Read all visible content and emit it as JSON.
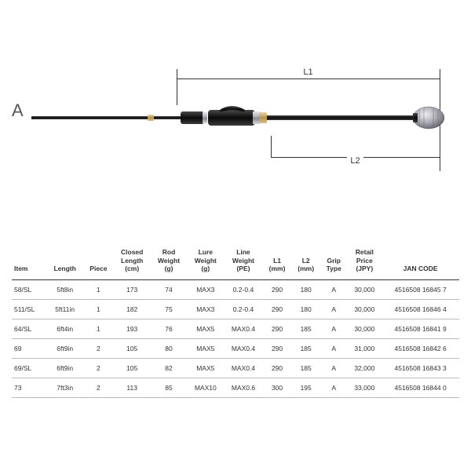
{
  "diagram": {
    "label": "A",
    "dim1": "L1",
    "dim2": "L2",
    "colors": {
      "shaft": "#2a2a2a",
      "metal_light": "#c8c8cc",
      "metal_dark": "#6a6a70",
      "gold": "#c8a862",
      "black": "#1a1a1a"
    }
  },
  "table": {
    "headers": [
      "Item",
      "Length",
      "Piece",
      "Closed\nLength\n(cm)",
      "Rod\nWeight\n(g)",
      "Lure\nWeight\n(g)",
      "Line\nWeight\n(PE)",
      "L1\n(mm)",
      "L2\n(mm)",
      "Grip\nType",
      "Retail\nPrice\n(JPY)",
      "JAN CODE"
    ],
    "rows": [
      [
        "58/SL",
        "5ft8in",
        "1",
        "173",
        "74",
        "MAX3",
        "0.2-0.4",
        "290",
        "180",
        "A",
        "30,000",
        "4516508 16845 7"
      ],
      [
        "511/SL",
        "5ft11in",
        "1",
        "182",
        "75",
        "MAX3",
        "0.2-0.4",
        "290",
        "180",
        "A",
        "30,000",
        "4516508 16846 4"
      ],
      [
        "64/SL",
        "6ft4in",
        "1",
        "193",
        "76",
        "MAX5",
        "MAX0.4",
        "290",
        "185",
        "A",
        "30,000",
        "4516508 16841 9"
      ],
      [
        "69",
        "6ft9in",
        "2",
        "105",
        "80",
        "MAX5",
        "MAX0.4",
        "290",
        "185",
        "A",
        "31,000",
        "4516508 16842 6"
      ],
      [
        "69/SL",
        "6ft9in",
        "2",
        "105",
        "82",
        "MAX5",
        "MAX0.4",
        "290",
        "185",
        "A",
        "32,000",
        "4516508 16843 3"
      ],
      [
        "73",
        "7ft3in",
        "2",
        "113",
        "85",
        "MAX10",
        "MAX0.6",
        "300",
        "195",
        "A",
        "33,000",
        "4516508 16844 0"
      ]
    ]
  }
}
